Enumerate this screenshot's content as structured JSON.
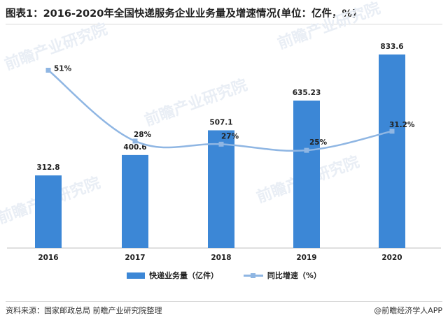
{
  "title": "图表1：2016-2020年全国快递服务企业业务量及增速情况(单位：亿件，%)",
  "source": "资料来源：国家邮政总局 前瞻产业研究院整理",
  "brand": "@前瞻经济学人APP",
  "watermark": "前瞻产业研究院",
  "chart_data": {
    "type": "bar",
    "categories": [
      "2016",
      "2017",
      "2018",
      "2019",
      "2020"
    ],
    "series": [
      {
        "name": "快递业务量（亿件）",
        "type": "bar",
        "values": [
          312.8,
          400.6,
          507.1,
          635.23,
          833.6
        ],
        "labels": [
          "312.8",
          "400.6",
          "507.1",
          "635.23",
          "833.6"
        ],
        "color": "#3c87d6"
      },
      {
        "name": "同比增速（%）",
        "type": "line",
        "values": [
          51,
          28,
          27,
          25,
          31.2
        ],
        "labels": [
          "51%",
          "28%",
          "27%",
          "25%",
          "31.2%"
        ],
        "color": "#8fb6e3"
      }
    ],
    "legend_position": "bottom-center",
    "grid": false
  }
}
